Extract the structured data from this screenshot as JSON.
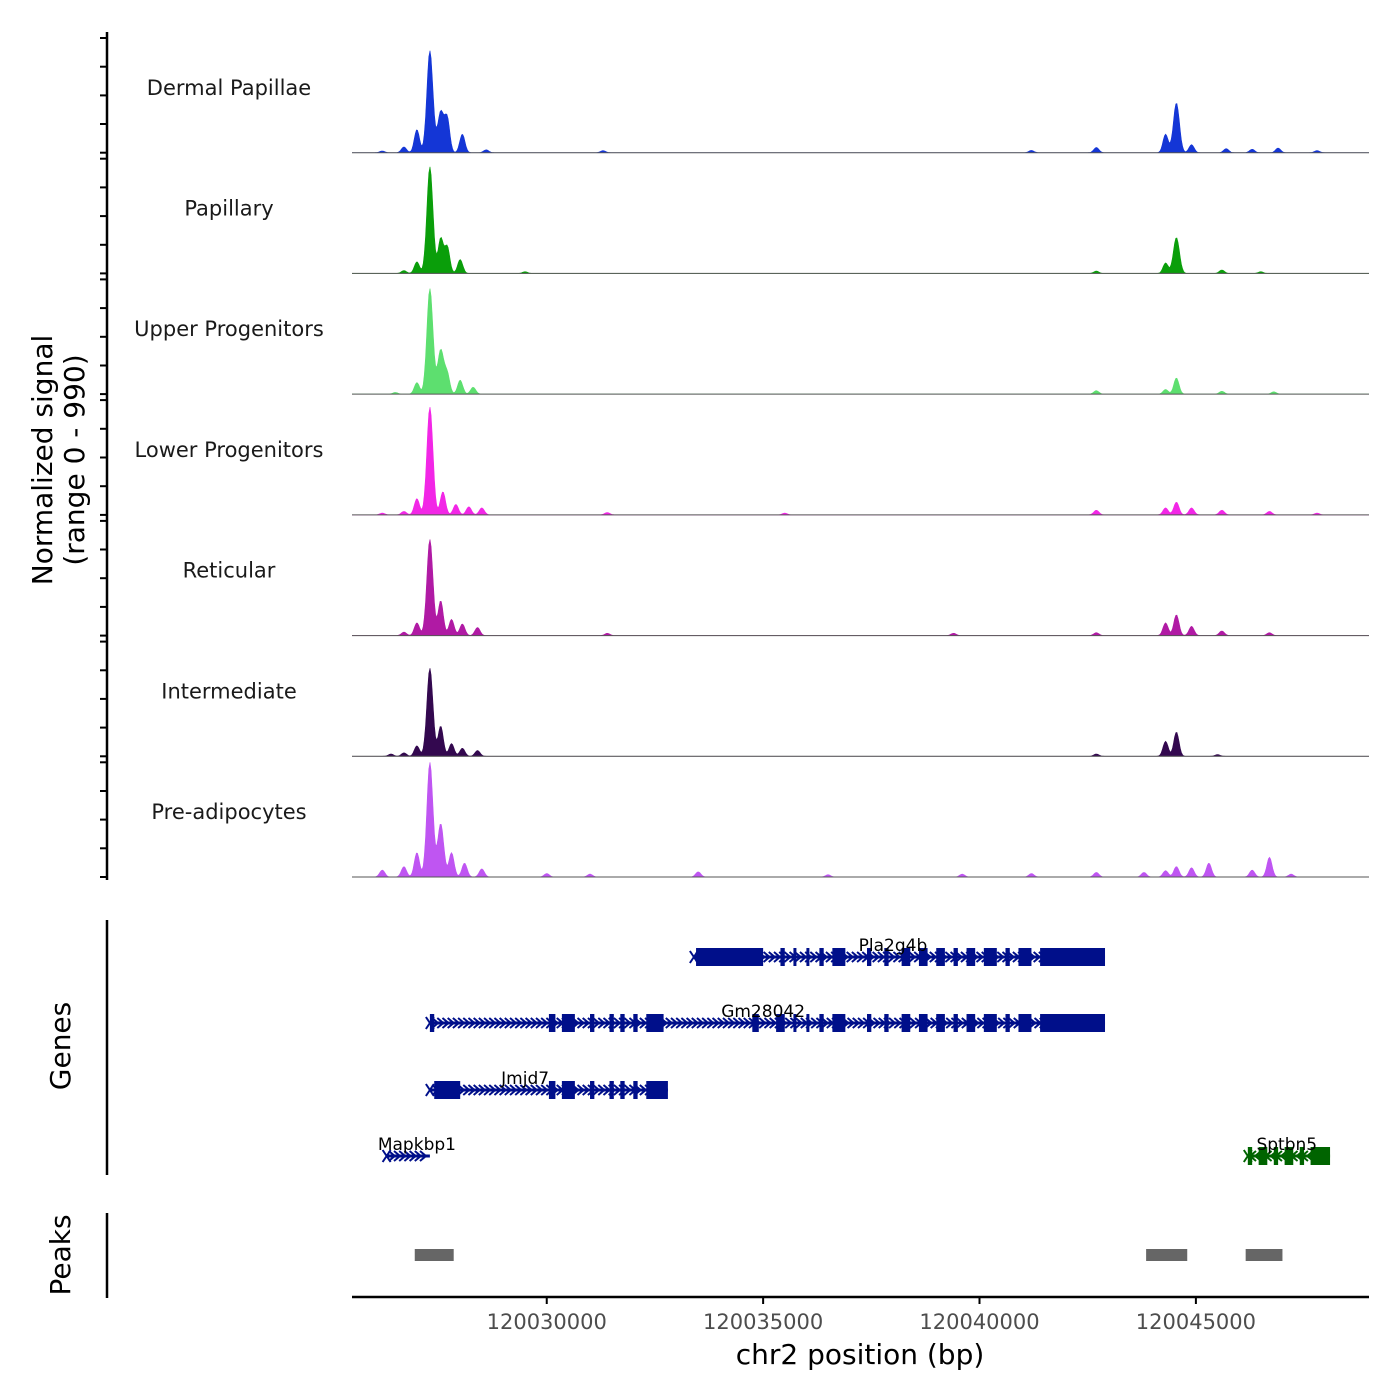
{
  "chart_data": {
    "type": "coverage",
    "y_axis_title": "Normalized signal",
    "y_axis_subtitle": "(range 0 - 990)",
    "ylim": [
      0,
      990
    ],
    "x_axis_title": "chr2 position (bp)",
    "chromosome": "chr2",
    "xlim": [
      120025500,
      120049000
    ],
    "x_ticks": [
      120030000,
      120035000,
      120040000,
      120045000
    ],
    "x_tick_labels": [
      "120030000",
      "120035000",
      "120040000",
      "120045000"
    ],
    "tracks": [
      {
        "name": "Dermal Papillae",
        "color": "#1436d6",
        "peaks": [
          [
            120026200,
            15
          ],
          [
            120026700,
            50
          ],
          [
            120027000,
            200
          ],
          [
            120027300,
            880
          ],
          [
            120027550,
            350
          ],
          [
            120027700,
            290
          ],
          [
            120028050,
            160
          ],
          [
            120028600,
            25
          ],
          [
            120031300,
            18
          ],
          [
            120041200,
            20
          ],
          [
            120042700,
            45
          ],
          [
            120044300,
            160
          ],
          [
            120044550,
            430
          ],
          [
            120044900,
            70
          ],
          [
            120045700,
            35
          ],
          [
            120046300,
            30
          ],
          [
            120046900,
            40
          ],
          [
            120047800,
            18
          ]
        ]
      },
      {
        "name": "Papillary",
        "color": "#0a9e0a",
        "peaks": [
          [
            120026700,
            25
          ],
          [
            120027000,
            100
          ],
          [
            120027300,
            920
          ],
          [
            120027550,
            300
          ],
          [
            120027700,
            230
          ],
          [
            120028000,
            120
          ],
          [
            120029500,
            15
          ],
          [
            120042700,
            20
          ],
          [
            120044300,
            90
          ],
          [
            120044550,
            310
          ],
          [
            120045600,
            30
          ],
          [
            120046500,
            15
          ]
        ]
      },
      {
        "name": "Upper Progenitors",
        "color": "#5ddf6f",
        "peaks": [
          [
            120026500,
            15
          ],
          [
            120027000,
            100
          ],
          [
            120027300,
            910
          ],
          [
            120027550,
            380
          ],
          [
            120027700,
            170
          ],
          [
            120028000,
            120
          ],
          [
            120028300,
            60
          ],
          [
            120042700,
            30
          ],
          [
            120044300,
            40
          ],
          [
            120044550,
            140
          ],
          [
            120045600,
            25
          ],
          [
            120046800,
            20
          ]
        ]
      },
      {
        "name": "Lower Progenitors",
        "color": "#f226e6",
        "peaks": [
          [
            120026200,
            15
          ],
          [
            120026700,
            30
          ],
          [
            120027000,
            140
          ],
          [
            120027300,
            930
          ],
          [
            120027600,
            200
          ],
          [
            120027900,
            90
          ],
          [
            120028200,
            70
          ],
          [
            120028500,
            60
          ],
          [
            120031400,
            20
          ],
          [
            120035500,
            15
          ],
          [
            120042700,
            40
          ],
          [
            120044300,
            60
          ],
          [
            120044550,
            110
          ],
          [
            120044900,
            60
          ],
          [
            120045600,
            40
          ],
          [
            120046700,
            30
          ],
          [
            120047800,
            15
          ]
        ]
      },
      {
        "name": "Reticular",
        "color": "#b01aa4",
        "peaks": [
          [
            120026700,
            30
          ],
          [
            120027000,
            110
          ],
          [
            120027300,
            830
          ],
          [
            120027550,
            300
          ],
          [
            120027800,
            140
          ],
          [
            120028050,
            100
          ],
          [
            120028400,
            70
          ],
          [
            120031400,
            20
          ],
          [
            120039400,
            20
          ],
          [
            120042700,
            25
          ],
          [
            120044300,
            110
          ],
          [
            120044550,
            180
          ],
          [
            120044900,
            80
          ],
          [
            120045600,
            40
          ],
          [
            120046700,
            25
          ]
        ]
      },
      {
        "name": "Intermediate",
        "color": "#33084f",
        "peaks": [
          [
            120026400,
            20
          ],
          [
            120026700,
            30
          ],
          [
            120027000,
            90
          ],
          [
            120027300,
            760
          ],
          [
            120027550,
            260
          ],
          [
            120027800,
            110
          ],
          [
            120028050,
            70
          ],
          [
            120028400,
            50
          ],
          [
            120042700,
            20
          ],
          [
            120044300,
            130
          ],
          [
            120044550,
            210
          ],
          [
            120045500,
            15
          ]
        ]
      },
      {
        "name": "Pre-adipocytes",
        "color": "#bf55f2",
        "peaks": [
          [
            120026200,
            60
          ],
          [
            120026700,
            90
          ],
          [
            120027000,
            210
          ],
          [
            120027300,
            990
          ],
          [
            120027550,
            460
          ],
          [
            120027800,
            210
          ],
          [
            120028100,
            120
          ],
          [
            120028500,
            70
          ],
          [
            120030000,
            30
          ],
          [
            120031000,
            25
          ],
          [
            120033500,
            45
          ],
          [
            120036500,
            20
          ],
          [
            120039600,
            25
          ],
          [
            120041200,
            30
          ],
          [
            120042700,
            40
          ],
          [
            120043800,
            40
          ],
          [
            120044300,
            55
          ],
          [
            120044550,
            90
          ],
          [
            120044900,
            80
          ],
          [
            120045300,
            120
          ],
          [
            120046300,
            60
          ],
          [
            120046700,
            170
          ],
          [
            120047200,
            25
          ]
        ]
      }
    ],
    "genes_track_title": "Genes",
    "genes": [
      {
        "name": "Pla2g4b",
        "color": "#000f8a",
        "start": 120033400,
        "end": 120042900,
        "strand": "+",
        "row": 0,
        "label_pos": 120038000,
        "exons": [
          [
            120033450,
            120035000
          ],
          [
            120035400,
            120035500
          ],
          [
            120035700,
            120035750
          ],
          [
            120036000,
            120036050
          ],
          [
            120036300,
            120036400
          ],
          [
            120036600,
            120036900
          ],
          [
            120037400,
            120037500
          ],
          [
            120037800,
            120037900
          ],
          [
            120038200,
            120038400
          ],
          [
            120038600,
            120038800
          ],
          [
            120039000,
            120039200
          ],
          [
            120039400,
            120039500
          ],
          [
            120039700,
            120039900
          ],
          [
            120040100,
            120040400
          ],
          [
            120040600,
            120040700
          ],
          [
            120040900,
            120041200
          ],
          [
            120041400,
            120042900
          ]
        ]
      },
      {
        "name": "Gm28042",
        "color": "#000f8a",
        "start": 120027300,
        "end": 120042900,
        "strand": "+",
        "row": 1,
        "label_pos": 120035000,
        "exons": [
          [
            120027300,
            120027400
          ],
          [
            120030050,
            120030200
          ],
          [
            120030350,
            120030650
          ],
          [
            120031000,
            120031100
          ],
          [
            120031450,
            120031550
          ],
          [
            120031700,
            120031800
          ],
          [
            120032000,
            120032100
          ],
          [
            120032300,
            120032700
          ],
          [
            120034750,
            120034900
          ],
          [
            120035300,
            120035500
          ],
          [
            120035700,
            120035750
          ],
          [
            120036000,
            120036050
          ],
          [
            120036300,
            120036400
          ],
          [
            120036600,
            120036900
          ],
          [
            120037400,
            120037500
          ],
          [
            120037800,
            120037900
          ],
          [
            120038200,
            120038400
          ],
          [
            120038600,
            120038800
          ],
          [
            120039000,
            120039200
          ],
          [
            120039400,
            120039500
          ],
          [
            120039700,
            120039900
          ],
          [
            120040100,
            120040400
          ],
          [
            120040600,
            120040700
          ],
          [
            120040900,
            120041200
          ],
          [
            120041400,
            120042900
          ]
        ]
      },
      {
        "name": "Jmjd7",
        "color": "#000f8a",
        "start": 120027300,
        "end": 120032800,
        "strand": "+",
        "row": 2,
        "label_pos": 120029500,
        "exons": [
          [
            120027400,
            120028000
          ],
          [
            120030050,
            120030200
          ],
          [
            120030350,
            120030650
          ],
          [
            120031000,
            120031100
          ],
          [
            120031450,
            120031550
          ],
          [
            120031700,
            120031800
          ],
          [
            120032000,
            120032100
          ],
          [
            120032300,
            120032800
          ]
        ]
      },
      {
        "name": "Mapkbp1",
        "color": "#000f8a",
        "start": 120026300,
        "end": 120027300,
        "strand": "+",
        "row": 3,
        "label_pos": 120027000,
        "exons": []
      },
      {
        "name": "Sptbn5",
        "color": "#006400",
        "start": 120046200,
        "end": 120048100,
        "strand": "-",
        "row": 3,
        "label_pos": 120047100,
        "exons": [
          [
            120046200,
            120046300
          ],
          [
            120046450,
            120046650
          ],
          [
            120046800,
            120046900
          ],
          [
            120047050,
            120047250
          ],
          [
            120047400,
            120047500
          ],
          [
            120047650,
            120048100
          ]
        ]
      }
    ],
    "peaks_track_title": "Peaks",
    "peak_regions": [
      [
        120026950,
        120027850
      ],
      [
        120043850,
        120044800
      ],
      [
        120046150,
        120047000
      ]
    ]
  }
}
